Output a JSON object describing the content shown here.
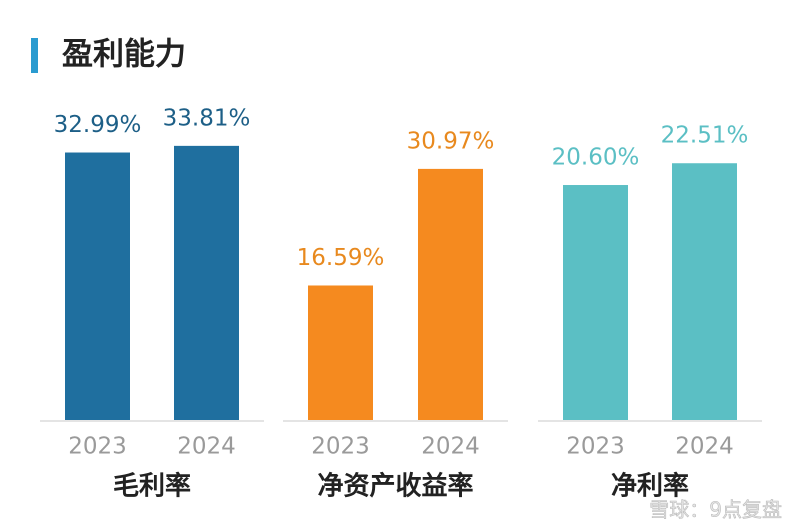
{
  "title": "盈利能力",
  "watermark": "雪球：9点复盘",
  "chart_data": [
    {
      "type": "bar",
      "title": "毛利率",
      "categories": [
        "2023",
        "2024"
      ],
      "values": [
        32.99,
        33.81
      ],
      "value_labels": [
        "32.99%",
        "33.81%"
      ],
      "color": "#1f6f9f",
      "label_color": "#1d5f87",
      "ylim": [
        0,
        37
      ]
    },
    {
      "type": "bar",
      "title": "净资产收益率",
      "categories": [
        "2023",
        "2024"
      ],
      "values": [
        16.59,
        30.97
      ],
      "value_labels": [
        "16.59%",
        "30.97%"
      ],
      "color": "#f58a1f",
      "label_color": "#e8891e",
      "ylim": [
        0,
        37
      ]
    },
    {
      "type": "bar",
      "title": "净利率",
      "categories": [
        "2023",
        "2024"
      ],
      "values": [
        20.6,
        22.51
      ],
      "value_labels": [
        "20.60%",
        "22.51%"
      ],
      "color": "#5bbfc4",
      "label_color": "#5bbfc4",
      "ylim": [
        0,
        26.3
      ]
    }
  ]
}
